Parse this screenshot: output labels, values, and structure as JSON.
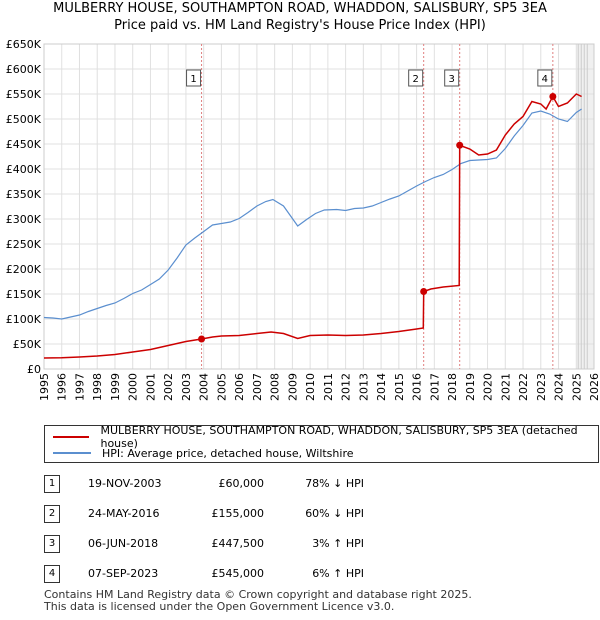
{
  "title_line1": "MULBERRY HOUSE, SOUTHAMPTON ROAD, WHADDON, SALISBURY, SP5 3EA",
  "title_line2": "Price paid vs. HM Land Registry's House Price Index (HPI)",
  "colors": {
    "property": "#cc0000",
    "hpi": "#5b8fcf",
    "grid": "#e0e0e0",
    "marker_line": "#e08080"
  },
  "chart_data": {
    "type": "line",
    "title": "Price paid vs. HM Land Registry's House Price Index (HPI)",
    "xlabel": "",
    "ylabel": "",
    "xlim": [
      1995,
      2026
    ],
    "ylim": [
      0,
      650000
    ],
    "x_ticks": [
      1995,
      1996,
      1997,
      1998,
      1999,
      2000,
      2001,
      2002,
      2003,
      2004,
      2005,
      2006,
      2007,
      2008,
      2009,
      2010,
      2011,
      2012,
      2013,
      2014,
      2015,
      2016,
      2017,
      2018,
      2019,
      2020,
      2021,
      2022,
      2023,
      2024,
      2025,
      2026
    ],
    "y_ticks": [
      {
        "value": 0,
        "label": "£0"
      },
      {
        "value": 50000,
        "label": "£50K"
      },
      {
        "value": 100000,
        "label": "£100K"
      },
      {
        "value": 150000,
        "label": "£150K"
      },
      {
        "value": 200000,
        "label": "£200K"
      },
      {
        "value": 250000,
        "label": "£250K"
      },
      {
        "value": 300000,
        "label": "£300K"
      },
      {
        "value": 350000,
        "label": "£350K"
      },
      {
        "value": 400000,
        "label": "£400K"
      },
      {
        "value": 450000,
        "label": "£450K"
      },
      {
        "value": 500000,
        "label": "£500K"
      },
      {
        "value": 550000,
        "label": "£550K"
      },
      {
        "value": 600000,
        "label": "£600K"
      },
      {
        "value": 650000,
        "label": "£650K"
      }
    ],
    "future_start": 2025.0,
    "series": [
      {
        "name": "MULBERRY HOUSE, SOUTHAMPTON ROAD, WHADDON, SALISBURY, SP5 3EA (detached house)",
        "color": "#cc0000",
        "points": [
          [
            1995.0,
            22000
          ],
          [
            1996.0,
            22500
          ],
          [
            1997.0,
            24000
          ],
          [
            1998.0,
            26000
          ],
          [
            1999.0,
            29000
          ],
          [
            2000.0,
            34000
          ],
          [
            2001.0,
            39000
          ],
          [
            2002.0,
            47000
          ],
          [
            2003.0,
            55000
          ],
          [
            2003.88,
            60000
          ],
          [
            2004.5,
            64000
          ],
          [
            2005.0,
            66000
          ],
          [
            2006.0,
            67000
          ],
          [
            2007.0,
            71000
          ],
          [
            2007.8,
            74000
          ],
          [
            2008.5,
            71000
          ],
          [
            2009.3,
            61000
          ],
          [
            2010.0,
            67000
          ],
          [
            2011.0,
            68000
          ],
          [
            2012.0,
            67000
          ],
          [
            2013.0,
            68000
          ],
          [
            2014.0,
            71000
          ],
          [
            2015.0,
            75000
          ],
          [
            2016.0,
            80000
          ],
          [
            2016.38,
            82000
          ],
          [
            2016.4,
            155000
          ],
          [
            2016.8,
            160000
          ],
          [
            2017.5,
            164000
          ],
          [
            2018.4,
            167000
          ],
          [
            2018.43,
            447500
          ],
          [
            2019.0,
            440000
          ],
          [
            2019.5,
            428000
          ],
          [
            2020.0,
            430000
          ],
          [
            2020.5,
            438000
          ],
          [
            2021.0,
            468000
          ],
          [
            2021.5,
            490000
          ],
          [
            2022.0,
            505000
          ],
          [
            2022.5,
            535000
          ],
          [
            2023.0,
            530000
          ],
          [
            2023.3,
            520000
          ],
          [
            2023.68,
            545000
          ],
          [
            2024.0,
            525000
          ],
          [
            2024.5,
            532000
          ],
          [
            2025.0,
            550000
          ],
          [
            2025.3,
            545000
          ]
        ]
      },
      {
        "name": "HPI: Average price, detached house, Wiltshire",
        "color": "#5b8fcf",
        "points": [
          [
            1995.0,
            103000
          ],
          [
            1995.5,
            102000
          ],
          [
            1996.0,
            100000
          ],
          [
            1996.5,
            104000
          ],
          [
            1997.0,
            108000
          ],
          [
            1997.5,
            115000
          ],
          [
            1998.0,
            121000
          ],
          [
            1998.5,
            127000
          ],
          [
            1999.0,
            132000
          ],
          [
            1999.5,
            141000
          ],
          [
            2000.0,
            151000
          ],
          [
            2000.5,
            158000
          ],
          [
            2001.0,
            169000
          ],
          [
            2001.5,
            180000
          ],
          [
            2002.0,
            198000
          ],
          [
            2002.5,
            222000
          ],
          [
            2003.0,
            248000
          ],
          [
            2003.5,
            262000
          ],
          [
            2004.0,
            275000
          ],
          [
            2004.5,
            288000
          ],
          [
            2005.0,
            291000
          ],
          [
            2005.5,
            294000
          ],
          [
            2006.0,
            301000
          ],
          [
            2006.5,
            313000
          ],
          [
            2007.0,
            326000
          ],
          [
            2007.5,
            335000
          ],
          [
            2007.9,
            339000
          ],
          [
            2008.5,
            326000
          ],
          [
            2009.0,
            301000
          ],
          [
            2009.3,
            286000
          ],
          [
            2009.8,
            299000
          ],
          [
            2010.3,
            311000
          ],
          [
            2010.8,
            318000
          ],
          [
            2011.5,
            319000
          ],
          [
            2012.0,
            317000
          ],
          [
            2012.5,
            321000
          ],
          [
            2013.0,
            322000
          ],
          [
            2013.5,
            326000
          ],
          [
            2014.0,
            333000
          ],
          [
            2014.5,
            340000
          ],
          [
            2015.0,
            346000
          ],
          [
            2015.5,
            356000
          ],
          [
            2016.0,
            366000
          ],
          [
            2016.5,
            375000
          ],
          [
            2017.0,
            383000
          ],
          [
            2017.5,
            389000
          ],
          [
            2018.0,
            399000
          ],
          [
            2018.5,
            411000
          ],
          [
            2019.0,
            417000
          ],
          [
            2019.5,
            418000
          ],
          [
            2020.0,
            419000
          ],
          [
            2020.5,
            422000
          ],
          [
            2021.0,
            441000
          ],
          [
            2021.5,
            466000
          ],
          [
            2022.0,
            487000
          ],
          [
            2022.5,
            512000
          ],
          [
            2023.0,
            516000
          ],
          [
            2023.5,
            510000
          ],
          [
            2024.0,
            500000
          ],
          [
            2024.5,
            495000
          ],
          [
            2025.0,
            513000
          ],
          [
            2025.3,
            520000
          ]
        ]
      }
    ],
    "sales": [
      {
        "id": "1",
        "x": 2003.88,
        "y": 60000
      },
      {
        "id": "2",
        "x": 2016.4,
        "y": 155000
      },
      {
        "id": "3",
        "x": 2018.43,
        "y": 447500
      },
      {
        "id": "4",
        "x": 2023.68,
        "y": 545000
      }
    ]
  },
  "legend": {
    "property": "MULBERRY HOUSE, SOUTHAMPTON ROAD, WHADDON, SALISBURY, SP5 3EA (detached house)",
    "hpi": "HPI: Average price, detached house, Wiltshire"
  },
  "sales_table": [
    {
      "num": "1",
      "date": "19-NOV-2003",
      "price": "£60,000",
      "hpi": "78% ↓ HPI"
    },
    {
      "num": "2",
      "date": "24-MAY-2016",
      "price": "£155,000",
      "hpi": "60% ↓ HPI"
    },
    {
      "num": "3",
      "date": "06-JUN-2018",
      "price": "£447,500",
      "hpi": "3% ↑ HPI"
    },
    {
      "num": "4",
      "date": "07-SEP-2023",
      "price": "£545,000",
      "hpi": "6% ↑ HPI"
    }
  ],
  "footer_line1": "Contains HM Land Registry data © Crown copyright and database right 2025.",
  "footer_line2": "This data is licensed under the Open Government Licence v3.0."
}
